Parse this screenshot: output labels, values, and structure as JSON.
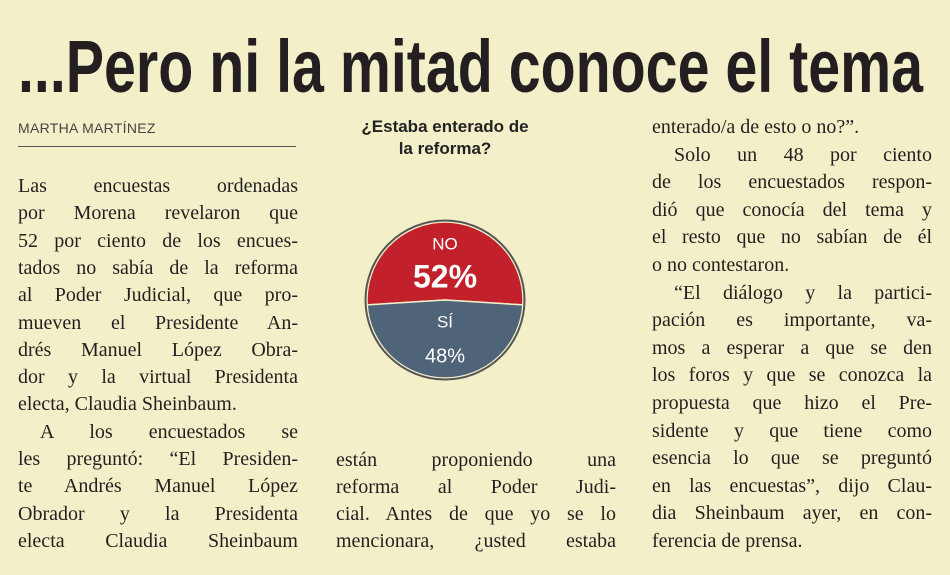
{
  "header": {
    "title": "...Pero ni la mitad conoce el tema",
    "byline": "MARTHA MARTÍNEZ"
  },
  "columns": [
    {
      "paragraphs": [
        [
          "Las encuestas ordenadas",
          "por Morena revelaron que",
          "52 por ciento de los encues-",
          "tados no sabía de la reforma",
          "al Poder Judicial, que pro-",
          "mueven el Presidente An-",
          "drés Manuel López Obra-",
          "dor y la virtual Presidenta",
          "electa, Claudia Sheinbaum."
        ],
        [
          "A los encuestados se",
          "les preguntó: “El Presiden-",
          "te Andrés Manuel López",
          "Obrador y la Presidenta",
          "electa Claudia Sheinbaum"
        ]
      ]
    },
    {
      "paragraphs": [
        [
          "están proponiendo una",
          "reforma al Poder Judi-",
          "cial. Antes de que yo se lo",
          "mencionara, ¿usted estaba"
        ]
      ]
    },
    {
      "paragraphs": [
        [
          "enterado/a de esto o no?”."
        ],
        [
          "Solo un 48 por ciento",
          "de los encuestados respon-",
          "dió que conocía del tema y",
          "el resto que no sabían de él",
          "o no contestaron."
        ],
        [
          "“El diálogo y la partici-",
          "pación es importante, va-",
          "mos a esperar a que se den",
          "los foros y que se conozca la",
          "propuesta que hizo el Pre-",
          "sidente y que tiene como",
          "esencia lo que se preguntó",
          "en las encuestas”, dijo Clau-",
          "dia Sheinbaum ayer, en con-",
          "ferencia de prensa."
        ]
      ]
    }
  ],
  "chart_data": {
    "type": "pie",
    "title": "¿Estaba enterado de la reforma?",
    "categories": [
      "NO",
      "SÍ"
    ],
    "values": [
      52,
      48
    ],
    "value_labels": [
      "52%",
      "48%"
    ],
    "colors": [
      "#c2202b",
      "#4f6479"
    ]
  }
}
